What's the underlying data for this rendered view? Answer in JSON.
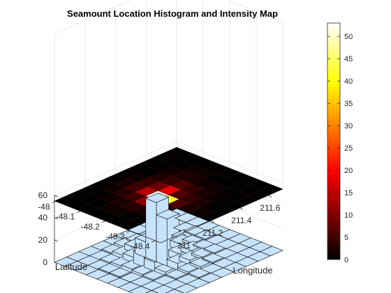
{
  "chart_data": {
    "type": "heatmap",
    "title": "Seamount Location Histogram and Intensity Map",
    "xlabel": "Longitude",
    "ylabel": "Latitude",
    "zlabel": "",
    "x_ticks": [
      "211",
      "211.2",
      "211.4",
      "211.6"
    ],
    "y_ticks": [
      "-48",
      "-48.1",
      "-48.2",
      "-48.3",
      "-48.4"
    ],
    "z_ticks": [
      "0",
      "20",
      "40",
      "60"
    ],
    "zlim": [
      0,
      60
    ],
    "colormap": "hot",
    "colorbar": {
      "ticks": [
        "0",
        "5",
        "10",
        "15",
        "20",
        "25",
        "30",
        "35",
        "40",
        "45",
        "50"
      ],
      "range": [
        0,
        53
      ]
    },
    "grid": true,
    "grid_size": [
      10,
      10
    ],
    "counts": [
      [
        0,
        0,
        0,
        0,
        0,
        0,
        0,
        0,
        0,
        0
      ],
      [
        0,
        0,
        0,
        1,
        2,
        1,
        0,
        0,
        0,
        0
      ],
      [
        0,
        0,
        1,
        3,
        5,
        4,
        2,
        1,
        0,
        0
      ],
      [
        0,
        1,
        2,
        5,
        14,
        8,
        4,
        2,
        1,
        0
      ],
      [
        0,
        1,
        3,
        11,
        53,
        18,
        6,
        2,
        1,
        0
      ],
      [
        0,
        0,
        2,
        8,
        42,
        6,
        4,
        1,
        0,
        0
      ],
      [
        0,
        0,
        1,
        3,
        6,
        4,
        2,
        1,
        0,
        0
      ],
      [
        0,
        0,
        0,
        1,
        2,
        2,
        1,
        0,
        0,
        0
      ],
      [
        0,
        0,
        0,
        0,
        1,
        0,
        0,
        0,
        0,
        0
      ],
      [
        0,
        0,
        0,
        0,
        0,
        0,
        0,
        0,
        0,
        0
      ]
    ],
    "bar_color": "#c6e3fb",
    "edge_color": "#000000"
  }
}
